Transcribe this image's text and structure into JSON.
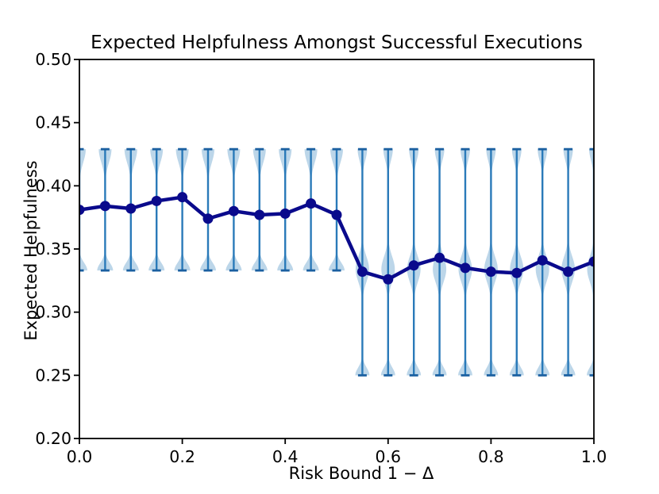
{
  "figure": {
    "background": "#ffffff"
  },
  "chart_data": {
    "type": "line",
    "subtype": "line-with-violin-distributions",
    "title": "Expected Helpfulness Amongst Successful Executions",
    "xlabel": "Risk Bound 1 − Δ",
    "ylabel": "Expected Helpfulness",
    "xlim": [
      0.0,
      1.0
    ],
    "ylim": [
      0.2,
      0.5
    ],
    "xticks": [
      "0.0",
      "0.2",
      "0.4",
      "0.6",
      "0.8",
      "1.0"
    ],
    "yticks": [
      "0.20",
      "0.25",
      "0.30",
      "0.35",
      "0.40",
      "0.45",
      "0.50"
    ],
    "grid": false,
    "legend": "none",
    "x": [
      0.0,
      0.05,
      0.1,
      0.15,
      0.2,
      0.25,
      0.3,
      0.35,
      0.4,
      0.45,
      0.5,
      0.55,
      0.6,
      0.65,
      0.7,
      0.75,
      0.8,
      0.85,
      0.9,
      0.95,
      1.0
    ],
    "mean": [
      0.381,
      0.384,
      0.382,
      0.388,
      0.391,
      0.374,
      0.38,
      0.377,
      0.378,
      0.386,
      0.377,
      0.332,
      0.326,
      0.337,
      0.343,
      0.335,
      0.332,
      0.331,
      0.341,
      0.332,
      0.34
    ],
    "violins": [
      {
        "x": 0.0,
        "min": 0.333,
        "max": 0.429,
        "shape": "left"
      },
      {
        "x": 0.05,
        "min": 0.333,
        "max": 0.429,
        "shape": "left"
      },
      {
        "x": 0.1,
        "min": 0.333,
        "max": 0.429,
        "shape": "left"
      },
      {
        "x": 0.15,
        "min": 0.333,
        "max": 0.429,
        "shape": "left"
      },
      {
        "x": 0.2,
        "min": 0.333,
        "max": 0.429,
        "shape": "left"
      },
      {
        "x": 0.25,
        "min": 0.333,
        "max": 0.429,
        "shape": "left"
      },
      {
        "x": 0.3,
        "min": 0.333,
        "max": 0.429,
        "shape": "left"
      },
      {
        "x": 0.35,
        "min": 0.333,
        "max": 0.429,
        "shape": "left"
      },
      {
        "x": 0.4,
        "min": 0.333,
        "max": 0.429,
        "shape": "left"
      },
      {
        "x": 0.45,
        "min": 0.333,
        "max": 0.429,
        "shape": "left"
      },
      {
        "x": 0.5,
        "min": 0.333,
        "max": 0.429,
        "shape": "left"
      },
      {
        "x": 0.55,
        "min": 0.25,
        "max": 0.429,
        "shape": "right"
      },
      {
        "x": 0.6,
        "min": 0.25,
        "max": 0.429,
        "shape": "right"
      },
      {
        "x": 0.65,
        "min": 0.25,
        "max": 0.429,
        "shape": "right"
      },
      {
        "x": 0.7,
        "min": 0.25,
        "max": 0.429,
        "shape": "right"
      },
      {
        "x": 0.75,
        "min": 0.25,
        "max": 0.429,
        "shape": "right"
      },
      {
        "x": 0.8,
        "min": 0.25,
        "max": 0.429,
        "shape": "right"
      },
      {
        "x": 0.85,
        "min": 0.25,
        "max": 0.429,
        "shape": "right"
      },
      {
        "x": 0.9,
        "min": 0.25,
        "max": 0.429,
        "shape": "right"
      },
      {
        "x": 0.95,
        "min": 0.25,
        "max": 0.429,
        "shape": "right"
      },
      {
        "x": 1.0,
        "min": 0.25,
        "max": 0.429,
        "shape": "right"
      }
    ],
    "violin_shapes": {
      "left": {
        "modes": [
          {
            "v": 0.429,
            "sigma": 0.0105,
            "amp": 8.0
          },
          {
            "v": 0.333,
            "sigma": 0.006,
            "amp": 10.0
          }
        ]
      },
      "right": {
        "modes": [
          {
            "v": 0.429,
            "sigma": 0.009,
            "amp": 6.0
          },
          {
            "v": 0.334,
            "sigma": 0.01,
            "amp": 8.5
          },
          {
            "v": 0.25,
            "sigma": 0.006,
            "amp": 9.0
          }
        ]
      }
    },
    "colors": {
      "mean_line": "#0a0a8c",
      "marker": "#0a0a8c",
      "violin_fill": "#bcd6e9",
      "violin_line": "#2a7ab9",
      "violin_cap": "#1a5fa0",
      "axis": "#000000"
    }
  }
}
